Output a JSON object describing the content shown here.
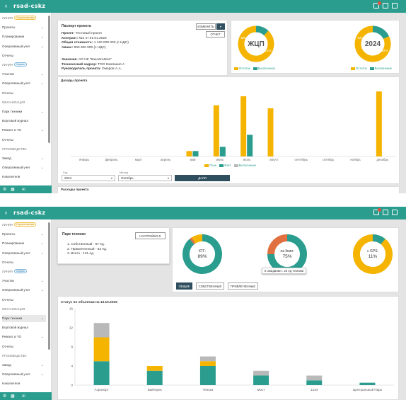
{
  "app": {
    "logo": "rsad-cskz"
  },
  "colors": {
    "teal": "#2a9d8f",
    "yellow": "#f4b400",
    "gray": "#b9b9b9",
    "orange": "#e07040",
    "dark": "#2f4f5f"
  },
  "sidebar1": {
    "items": [
      {
        "label": "ЛИНИЯ",
        "pill": "Строительство",
        "pill_kind": "y",
        "type": "sec",
        "chev": ""
      },
      {
        "label": "Проекты",
        "chev": "⌄"
      },
      {
        "label": "Планирование",
        "chev": "⌄"
      },
      {
        "label": "Оперативный учет",
        "chev": "⌄"
      },
      {
        "label": "Отчеты",
        "chev": ""
      },
      {
        "label": "ЛИНИЯ",
        "pill": "Сервис",
        "pill_kind": "b",
        "type": "sec",
        "chev": ""
      },
      {
        "label": "Участки",
        "chev": "⌄"
      },
      {
        "label": "Оперативный учет",
        "chev": "⌄"
      },
      {
        "label": "Отчеты",
        "chev": ""
      },
      {
        "label": "МЕХАНИЗАЦИЯ",
        "type": "sec",
        "chev": ""
      },
      {
        "label": "Парк техники",
        "chev": "⌄"
      },
      {
        "label": "Бортовой журнал",
        "chev": ""
      },
      {
        "label": "Ремонт и ТО",
        "chev": "⌄"
      },
      {
        "label": "Отчеты",
        "chev": ""
      },
      {
        "label": "ПРОИЗВОДСТВО",
        "type": "sec",
        "chev": ""
      },
      {
        "label": "Завод",
        "chev": "⌄"
      },
      {
        "label": "Оперативный учет",
        "chev": "⌄"
      },
      {
        "label": "Накопители",
        "chev": ""
      }
    ],
    "bottom_label": "AI"
  },
  "passport": {
    "title": "Паспорт проекта",
    "edit_btn": "ИЗМЕНИТЬ",
    "report_btn": "ОТЧЕТ",
    "lines": [
      {
        "k": "Проект:",
        "v": "Тестовый проект"
      },
      {
        "k": "Контракт:",
        "v": "№1 от 01.01.2023"
      },
      {
        "k": "Общая стоимость:",
        "v": "1 120 000 000 (с НДС)"
      },
      {
        "k": "Аванс:",
        "v": "900 000 000 (с НДС)"
      }
    ],
    "lines2": [
      {
        "k": "Заказчик:",
        "v": "АО НК \"КазАвтоЖол\""
      },
      {
        "k": "Технический надзор:",
        "v": "ТОО Компания А"
      },
      {
        "k": "Руководитель проекта:",
        "v": "Омаров А.А."
      }
    ]
  },
  "donut_zhkp": {
    "center": "ЖЦП",
    "remain_pct": "88%",
    "done_pct": "12%",
    "remain": 88,
    "done": 12,
    "legend_remain": "Остаток",
    "legend_done": "Выполнение"
  },
  "donut_2024": {
    "center": "2024",
    "remain_pct": "82%",
    "done_pct": "18%",
    "remain": 82,
    "done": 18,
    "legend_remain": "Остаток",
    "legend_done": "Выполнение"
  },
  "income": {
    "title": "Доходы проекта",
    "legend": [
      "План",
      "Факт",
      "Выполнение"
    ],
    "chart_data": {
      "type": "bar",
      "categories": [
        "январь",
        "февраль",
        "март",
        "апрель",
        "май",
        "июнь",
        "июль",
        "август",
        "сентябрь",
        "октябрь",
        "ноябрь",
        "декабрь"
      ],
      "series": [
        {
          "name": "План",
          "values": [
            0,
            0,
            0,
            0,
            9,
            85,
            100,
            80,
            0,
            0,
            0,
            108
          ]
        },
        {
          "name": "Факт",
          "values": [
            0,
            0,
            0,
            0,
            9,
            16,
            36,
            0,
            0,
            0,
            0,
            0
          ]
        },
        {
          "name": "Выполнение",
          "values": [
            0,
            0,
            0,
            0,
            0,
            0,
            0,
            0,
            0,
            0,
            0,
            0
          ]
        }
      ],
      "ylim": [
        0,
        120
      ]
    },
    "year_label": "Год",
    "year_value": "2024",
    "month_label": "Месяц",
    "month_value": "Октябрь",
    "apply_btn": "ДАЛИ"
  },
  "expenses": {
    "title": "Расходы проекта"
  },
  "sidebar2": {
    "items": [
      {
        "label": "ЛИНИЯ",
        "pill": "Строительство",
        "pill_kind": "y",
        "type": "sec",
        "chev": ""
      },
      {
        "label": "Проекты",
        "chev": "⌄"
      },
      {
        "label": "Планирование",
        "chev": "⌄"
      },
      {
        "label": "Оперативный учет",
        "chev": "⌄"
      },
      {
        "label": "Отчеты",
        "chev": ""
      },
      {
        "label": "ЛИНИЯ",
        "pill": "Сервис",
        "pill_kind": "b",
        "type": "sec",
        "chev": ""
      },
      {
        "label": "Участки",
        "chev": "⌄"
      },
      {
        "label": "Оперативный учет",
        "chev": "⌄"
      },
      {
        "label": "Отчеты",
        "chev": ""
      },
      {
        "label": "МЕХАНИЗАЦИЯ",
        "type": "sec",
        "chev": ""
      },
      {
        "label": "Парк техники",
        "chev": "⌄",
        "active": true
      },
      {
        "label": "Бортовой журнал",
        "chev": ""
      },
      {
        "label": "Ремонт и ТО",
        "chev": "⌄"
      },
      {
        "label": "Отчеты",
        "chev": ""
      },
      {
        "label": "ПРОИЗВОДСТВО",
        "type": "sec",
        "chev": ""
      },
      {
        "label": "Завод",
        "chev": "⌄"
      },
      {
        "label": "Оперативный учет",
        "chev": "⌄"
      },
      {
        "label": "Накопители",
        "chev": ""
      }
    ],
    "bottom_label": "AI"
  },
  "fleet": {
    "title": "Парк техники",
    "settings_btn": "НАСТРОЙКИ",
    "list": [
      "1. Собственный - 67 ед.",
      "2. Привлеченный - 64 ед.",
      "3. Всего - 131 ед."
    ]
  },
  "donut_ktg": {
    "center": "КТГ:",
    "pct": "89%",
    "value": 89
  },
  "donut_repair": {
    "center": "на linии:",
    "pct": "75%",
    "value": 75,
    "tooltip": "в ожидании : 22 ед техники"
  },
  "donut_gps": {
    "center": "с GPS:",
    "pct": "11%",
    "value": 11
  },
  "fleet_tabs": [
    "ОБЩИЕ",
    "СОБСТВЕННЫЕ",
    "ПРИВЛЕЧЕННЫЕ"
  ],
  "status": {
    "title": "Статус по объектам на 13.10.2025",
    "chart_data": {
      "type": "bar",
      "categories": [
        "Аэропорт",
        "Байтерек",
        "Тенсиз",
        "Мост",
        "1234",
        "Центральный Парк"
      ],
      "series": [
        {
          "name": "teal",
          "values": [
            5,
            3,
            4,
            2,
            1,
            0.5
          ]
        },
        {
          "name": "yellow",
          "values": [
            5,
            1,
            1,
            0,
            0,
            0
          ]
        },
        {
          "name": "gray",
          "values": [
            3,
            0,
            1,
            1,
            1,
            0
          ]
        }
      ],
      "ylim": [
        0,
        16
      ],
      "yticks": [
        0,
        4,
        8,
        12,
        16
      ]
    }
  }
}
